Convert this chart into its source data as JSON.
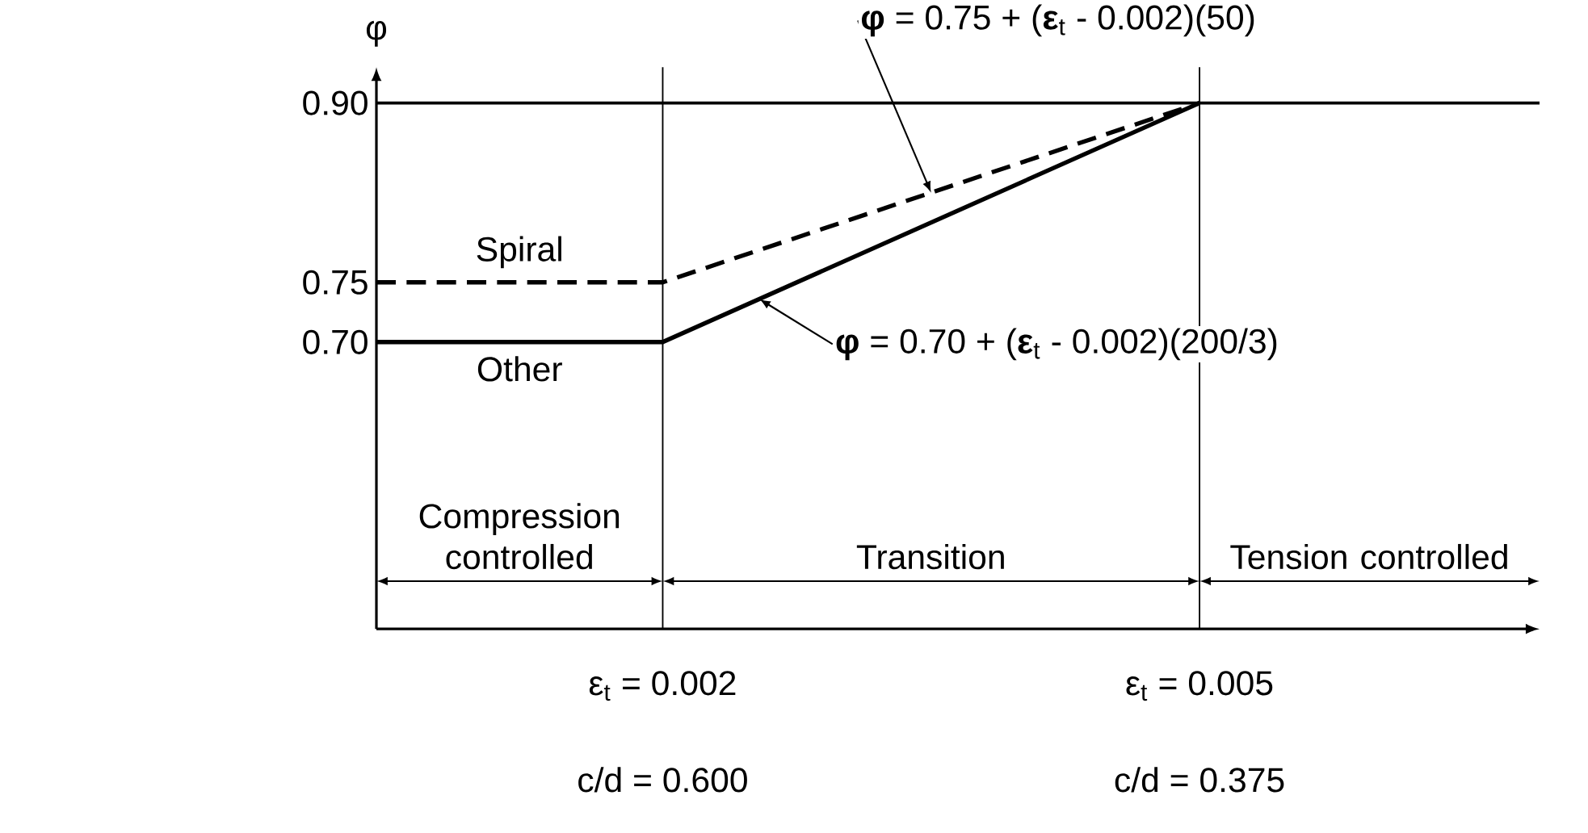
{
  "chart_data": {
    "type": "line",
    "ylabel": "φ",
    "xlim": [
      0.0004,
      0.0069
    ],
    "ylim": [
      0.46,
      0.93
    ],
    "xticks": [
      {
        "value": 0.002,
        "label": "ε$_{t}$ = 0.002"
      },
      {
        "value": 0.005,
        "label": "ε$_{t}$ = 0.005"
      }
    ],
    "yticks": [
      {
        "value": 0.7,
        "label": "0.70"
      },
      {
        "value": 0.75,
        "label": "0.75"
      },
      {
        "value": 0.9,
        "label": "0.90"
      }
    ],
    "series": [
      {
        "name": "Spiral",
        "color": "#000000",
        "line_style": "dashed",
        "x": [
          0.0004,
          0.002,
          0.005
        ],
        "values": [
          0.75,
          0.75,
          0.9
        ]
      },
      {
        "name": "Other",
        "color": "#000000",
        "line_style": "solid",
        "x": [
          0.0004,
          0.002,
          0.005
        ],
        "values": [
          0.7,
          0.7,
          0.9
        ]
      }
    ],
    "ref_lines": [
      {
        "axis": "y",
        "value": 0.9,
        "color": "#000000"
      },
      {
        "axis": "x",
        "value": 0.002,
        "color": "#000000"
      },
      {
        "axis": "x",
        "value": 0.005,
        "color": "#000000"
      }
    ],
    "annotations": [
      {
        "text": "**φ** = 0.75 + (**ε**$_{t}$ - 0.002)(50)",
        "x": 0.0035,
        "y": 0.825
      },
      {
        "text": "**φ** = 0.70 + (**ε**$_{t}$ - 0.002)(200/3)",
        "x": 0.00254,
        "y": 0.736
      },
      "Compression controlled",
      "Transition",
      "Tension controlled",
      "c/d = 0.600",
      "c/d = 0.375"
    ],
    "grid": false,
    "marker": "none"
  }
}
